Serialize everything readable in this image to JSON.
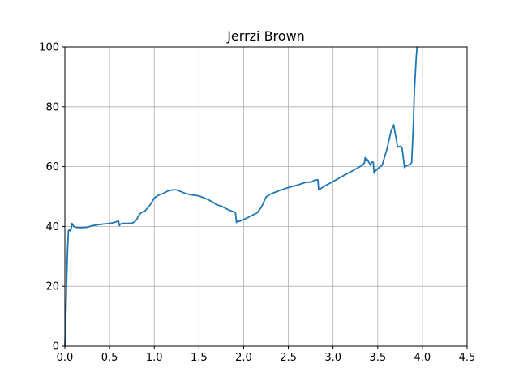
{
  "chart_data": {
    "type": "line",
    "title": "Jerrzi Brown",
    "xlabel": "",
    "ylabel": "",
    "xlim": [
      0,
      4.5
    ],
    "ylim": [
      0,
      100
    ],
    "xticks": [
      0.0,
      0.5,
      1.0,
      1.5,
      2.0,
      2.5,
      3.0,
      3.5,
      4.0,
      4.5
    ],
    "xtick_labels": [
      "0.0",
      "0.5",
      "1.0",
      "1.5",
      "2.0",
      "2.5",
      "3.0",
      "3.5",
      "4.0",
      "4.5"
    ],
    "yticks": [
      0,
      20,
      40,
      60,
      80,
      100
    ],
    "ytick_labels": [
      "0",
      "20",
      "40",
      "60",
      "80",
      "100"
    ],
    "grid": true,
    "colors": {
      "line": "#1f77b4",
      "grid": "#b0b0b0",
      "axis": "#000000"
    },
    "series": [
      {
        "x": [
          0.0,
          0.01,
          0.02,
          0.03,
          0.04,
          0.05,
          0.06,
          0.07,
          0.08,
          0.09,
          0.1,
          0.12,
          0.15,
          0.2,
          0.25,
          0.3,
          0.4,
          0.5,
          0.55,
          0.6,
          0.61,
          0.62,
          0.65,
          0.7,
          0.75,
          0.78,
          0.8,
          0.83,
          0.85,
          0.9,
          0.95,
          1.0,
          1.05,
          1.1,
          1.15,
          1.2,
          1.25,
          1.3,
          1.35,
          1.4,
          1.5,
          1.55,
          1.6,
          1.65,
          1.7,
          1.75,
          1.8,
          1.85,
          1.9,
          1.91,
          1.92,
          1.93,
          1.95,
          2.0,
          2.05,
          2.1,
          2.15,
          2.2,
          2.25,
          2.3,
          2.4,
          2.5,
          2.6,
          2.7,
          2.75,
          2.8,
          2.83,
          2.84,
          2.9,
          3.0,
          3.1,
          3.2,
          3.3,
          3.33,
          3.35,
          3.36,
          3.37,
          3.38,
          3.4,
          3.42,
          3.43,
          3.45,
          3.46,
          3.47,
          3.5,
          3.55,
          3.6,
          3.62,
          3.65,
          3.68,
          3.69,
          3.7,
          3.72,
          3.73,
          3.75,
          3.77,
          3.78,
          3.8,
          3.82,
          3.85,
          3.88,
          3.9,
          3.91,
          3.93,
          3.94
        ],
        "y": [
          0.0,
          10.0,
          22.0,
          32.0,
          38.5,
          39.0,
          38.5,
          39.0,
          41.0,
          40.5,
          40.0,
          39.7,
          39.6,
          39.6,
          39.7,
          40.2,
          40.7,
          41.0,
          41.3,
          41.8,
          40.3,
          40.8,
          41.0,
          41.0,
          41.1,
          41.5,
          42.2,
          43.8,
          44.5,
          45.3,
          47.0,
          49.5,
          50.5,
          51.0,
          51.8,
          52.2,
          52.2,
          51.6,
          51.0,
          50.6,
          50.2,
          49.6,
          49.0,
          48.2,
          47.2,
          46.8,
          46.0,
          45.3,
          44.8,
          44.3,
          41.3,
          41.8,
          41.7,
          42.3,
          43.0,
          43.8,
          44.5,
          46.5,
          49.8,
          50.8,
          52.0,
          53.0,
          53.8,
          54.8,
          54.8,
          55.5,
          55.6,
          52.2,
          53.4,
          55.0,
          56.7,
          58.3,
          60.0,
          60.5,
          61.2,
          63.0,
          62.0,
          62.5,
          61.5,
          60.5,
          61.5,
          61.5,
          57.8,
          58.4,
          59.3,
          60.5,
          65.5,
          68.0,
          72.0,
          74.0,
          72.0,
          70.5,
          67.0,
          66.5,
          66.8,
          66.5,
          64.5,
          59.7,
          60.3,
          60.6,
          61.3,
          75.0,
          85.0,
          96.0,
          100.0
        ]
      }
    ]
  }
}
